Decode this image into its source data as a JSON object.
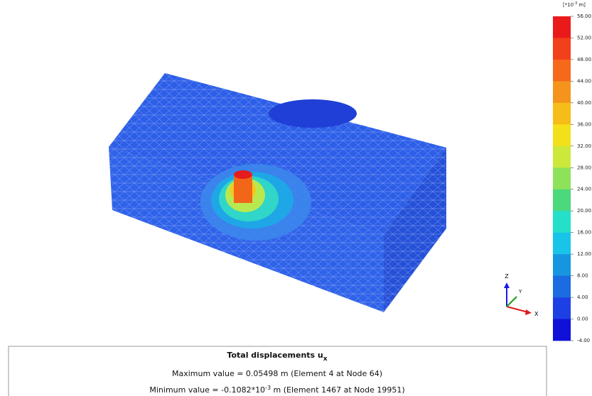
{
  "legend": {
    "unit_prefix": "[*10",
    "unit_exp": "-3",
    "unit_suffix": " m]",
    "labels": [
      "56.00",
      "52.00",
      "48.00",
      "44.00",
      "40.00",
      "36.00",
      "32.00",
      "28.00",
      "24.00",
      "20.00",
      "16.00",
      "12.00",
      "8.00",
      "4.00",
      "0.00",
      "-4.00"
    ],
    "colors": [
      "#ea1a1a",
      "#f2401a",
      "#f6681a",
      "#f4941c",
      "#f6bc18",
      "#f4e018",
      "#cce83a",
      "#8ee25a",
      "#4cd87c",
      "#24e0c8",
      "#18c4e8",
      "#1696e0",
      "#1a6ce0",
      "#1c40e4",
      "#1010d8"
    ]
  },
  "axes": {
    "z": "Z",
    "y": "Y",
    "x": "X"
  },
  "info": {
    "title": "Total displacements u",
    "title_sub": "x",
    "max_line": "Maximum value = 0.05498 m (Element 4 at Node 64)",
    "min_prefix": "Minimum value = -0.1082*10",
    "min_exp": "-3",
    "min_suffix": " m (Element 1467 at Node 19951)"
  }
}
